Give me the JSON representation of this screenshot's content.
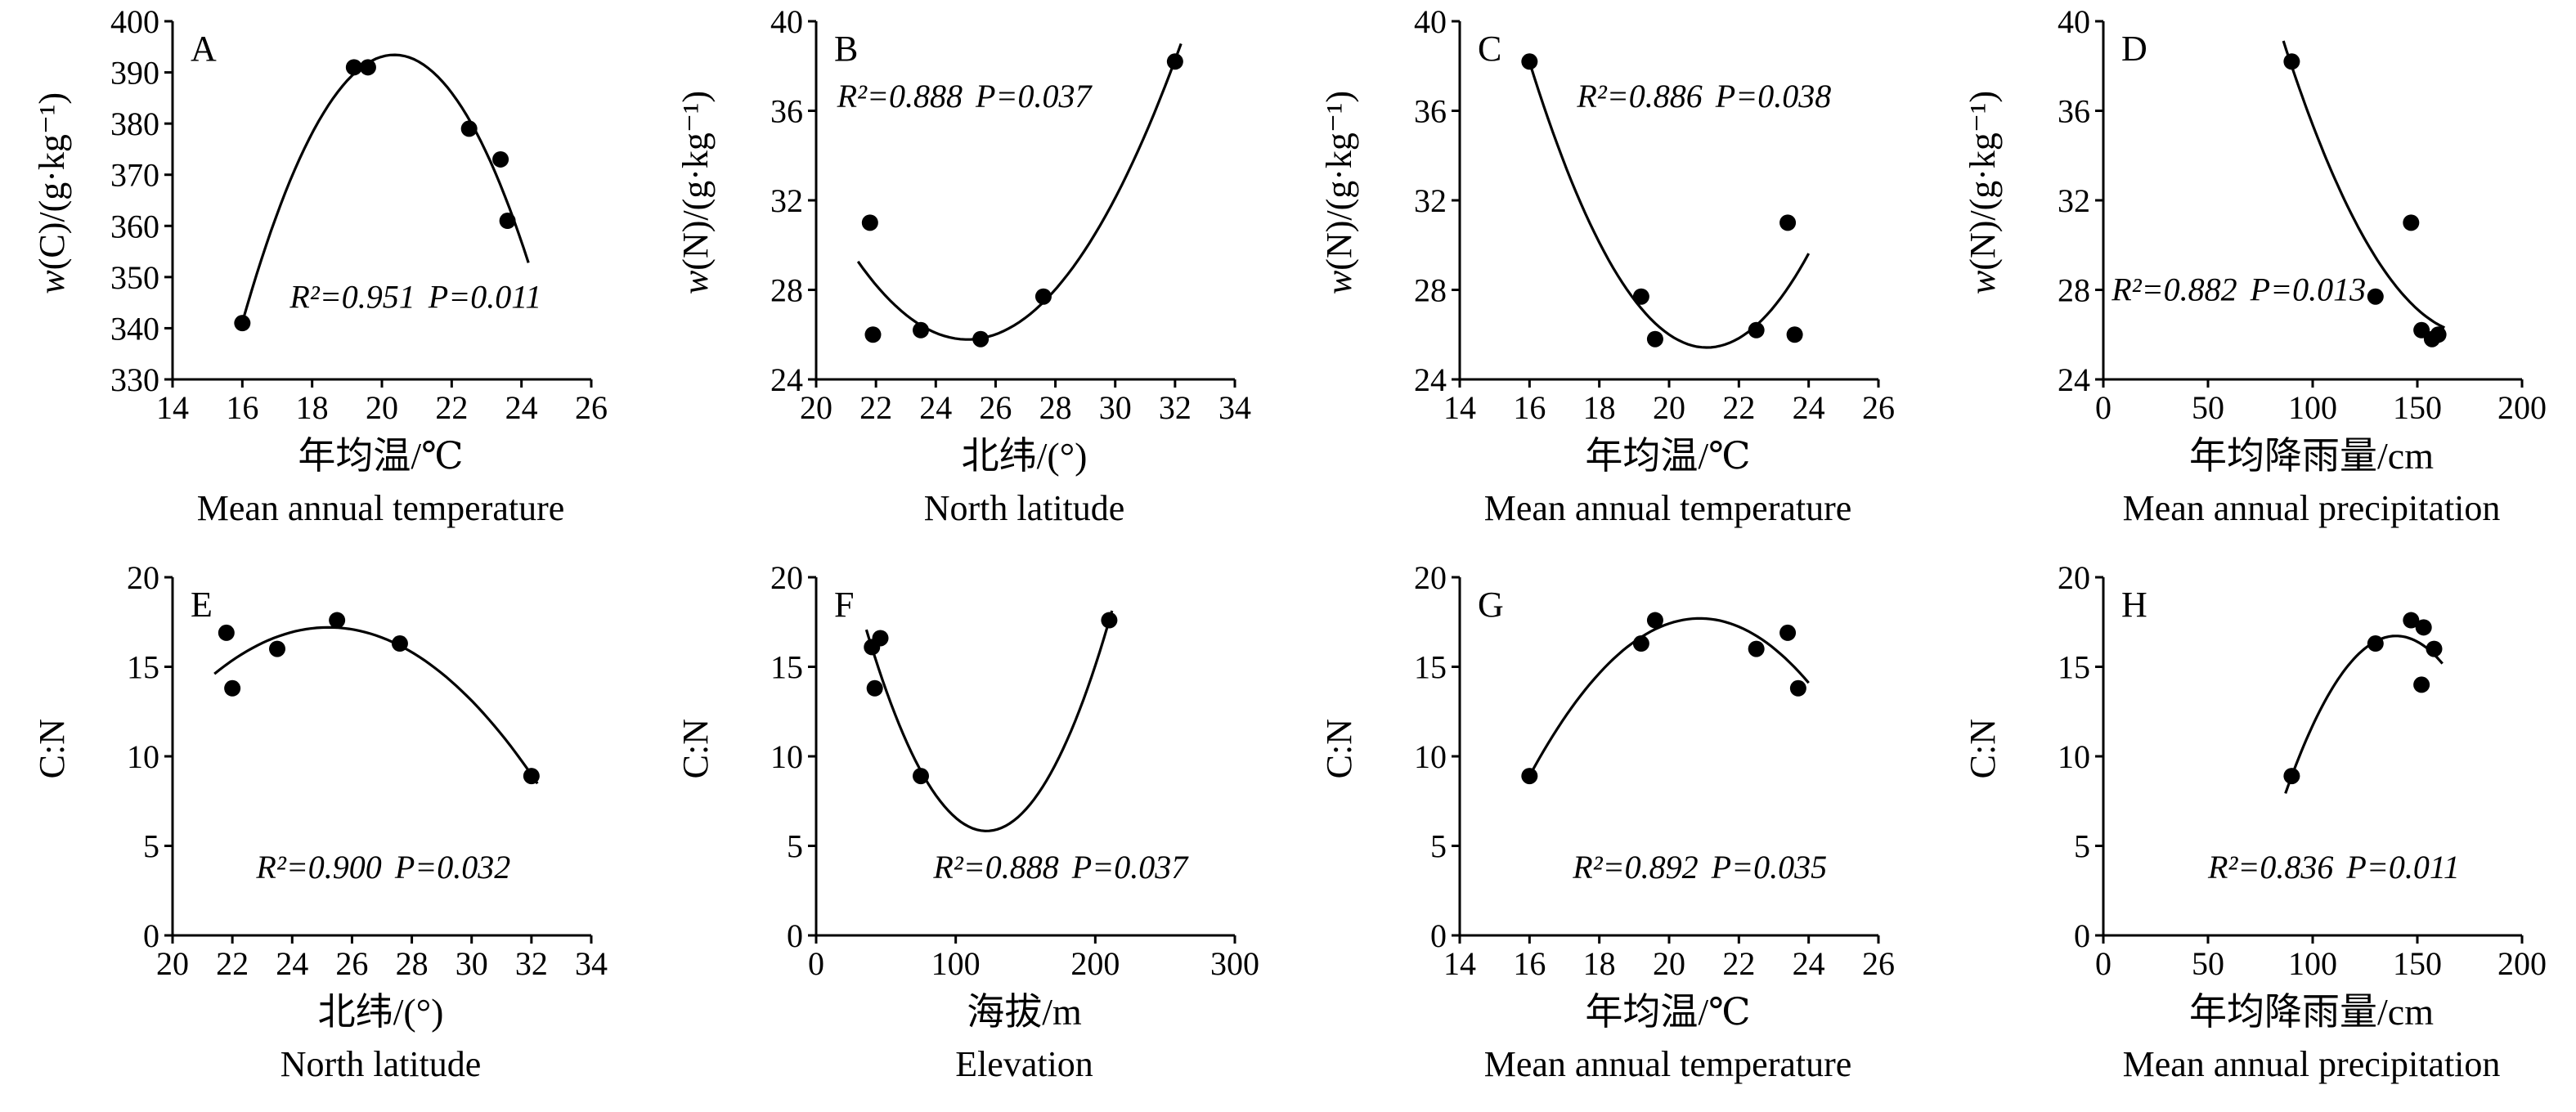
{
  "figure": {
    "background": "#ffffff",
    "ink_color": "#000000",
    "layout": "2 rows x 4 columns of scatter plots with quadratic fit curves"
  },
  "chart_data": [
    {
      "panel_label": "A",
      "type": "scatter",
      "ylabel_italic": "w",
      "ylabel_rest": "(C)/(g·kg⁻¹)",
      "xlabel_cn": "年均温/℃",
      "xlabel_en": "Mean annual temperature",
      "r2_text": "R²=0.951",
      "p_text": "P=0.011",
      "annotation_pos": {
        "x": 0.28,
        "y": 0.8
      },
      "xlim": [
        14,
        26
      ],
      "ylim": [
        330,
        400
      ],
      "xticks": [
        14,
        16,
        18,
        20,
        22,
        24,
        26
      ],
      "yticks": [
        330,
        340,
        350,
        360,
        370,
        380,
        390,
        400
      ],
      "fit": "quadratic",
      "fit_range": [
        16,
        24.2
      ],
      "points": [
        [
          16,
          341
        ],
        [
          19.2,
          391
        ],
        [
          19.6,
          391
        ],
        [
          22.5,
          379
        ],
        [
          23.4,
          373
        ],
        [
          23.6,
          361
        ]
      ]
    },
    {
      "panel_label": "B",
      "type": "scatter",
      "ylabel_italic": "w",
      "ylabel_rest": "(N)/(g·kg⁻¹)",
      "xlabel_cn": "北纬/(°)",
      "xlabel_en": "North latitude",
      "r2_text": "R²=0.888",
      "p_text": "P=0.037",
      "annotation_pos": {
        "x": 0.05,
        "y": 0.24
      },
      "xlim": [
        20,
        34
      ],
      "ylim": [
        24,
        40
      ],
      "xticks": [
        20,
        22,
        24,
        26,
        28,
        30,
        32,
        34
      ],
      "yticks": [
        24,
        28,
        32,
        36,
        40
      ],
      "fit": "quadratic",
      "fit_range": [
        21.4,
        32.2
      ],
      "points": [
        [
          21.8,
          31
        ],
        [
          21.9,
          26
        ],
        [
          23.5,
          26.2
        ],
        [
          25.5,
          25.8
        ],
        [
          27.6,
          27.7
        ],
        [
          32,
          38.2
        ]
      ]
    },
    {
      "panel_label": "C",
      "type": "scatter",
      "ylabel_italic": "w",
      "ylabel_rest": "(N)/(g·kg⁻¹)",
      "xlabel_cn": "年均温/℃",
      "xlabel_en": "Mean annual temperature",
      "r2_text": "R²=0.886",
      "p_text": "P=0.038",
      "annotation_pos": {
        "x": 0.28,
        "y": 0.24
      },
      "xlim": [
        14,
        26
      ],
      "ylim": [
        24,
        40
      ],
      "xticks": [
        14,
        16,
        18,
        20,
        22,
        24,
        26
      ],
      "yticks": [
        24,
        28,
        32,
        36,
        40
      ],
      "fit": "quadratic",
      "fit_range": [
        16,
        24.0
      ],
      "points": [
        [
          16,
          38.2
        ],
        [
          19.2,
          27.7
        ],
        [
          19.6,
          25.8
        ],
        [
          22.5,
          26.2
        ],
        [
          23.4,
          31
        ],
        [
          23.6,
          26
        ]
      ]
    },
    {
      "panel_label": "D",
      "type": "scatter",
      "ylabel_italic": "w",
      "ylabel_rest": "(N)/(g·kg⁻¹)",
      "xlabel_cn": "年均降雨量/cm",
      "xlabel_en": "Mean annual precipitation",
      "r2_text": "R²=0.882",
      "p_text": "P=0.013",
      "annotation_pos": {
        "x": 0.02,
        "y": 0.78
      },
      "xlim": [
        0,
        200
      ],
      "ylim": [
        24,
        40
      ],
      "xticks": [
        0,
        50,
        100,
        150,
        200
      ],
      "yticks": [
        24,
        28,
        32,
        36,
        40
      ],
      "fit": "quadratic",
      "fit_range": [
        86,
        163
      ],
      "points": [
        [
          90,
          38.2
        ],
        [
          130,
          27.7
        ],
        [
          147,
          31
        ],
        [
          152,
          26.2
        ],
        [
          157,
          25.8
        ],
        [
          160,
          26
        ]
      ]
    },
    {
      "panel_label": "E",
      "type": "scatter",
      "ylabel_italic": "",
      "ylabel_rest": "C:N",
      "xlabel_cn": "北纬/(°)",
      "xlabel_en": "North latitude",
      "r2_text": "R²=0.900",
      "p_text": "P=0.032",
      "annotation_pos": {
        "x": 0.2,
        "y": 0.84
      },
      "xlim": [
        20,
        34
      ],
      "ylim": [
        0,
        20
      ],
      "xticks": [
        20,
        22,
        24,
        26,
        28,
        30,
        32,
        34
      ],
      "yticks": [
        0,
        5,
        10,
        15,
        20
      ],
      "fit": "quadratic",
      "fit_range": [
        21.4,
        32.2
      ],
      "points": [
        [
          21.8,
          16.9
        ],
        [
          22,
          13.8
        ],
        [
          23.5,
          16
        ],
        [
          25.5,
          17.6
        ],
        [
          27.6,
          16.3
        ],
        [
          32,
          8.9
        ]
      ]
    },
    {
      "panel_label": "F",
      "type": "scatter",
      "ylabel_italic": "",
      "ylabel_rest": "C:N",
      "xlabel_cn": "海拔/m",
      "xlabel_en": "Elevation",
      "r2_text": "R²=0.888",
      "p_text": "P=0.037",
      "annotation_pos": {
        "x": 0.28,
        "y": 0.84
      },
      "xlim": [
        0,
        300
      ],
      "ylim": [
        0,
        20
      ],
      "xticks": [
        0,
        100,
        200,
        300
      ],
      "yticks": [
        0,
        5,
        10,
        15,
        20
      ],
      "fit": "quadratic",
      "fit_range": [
        36,
        212
      ],
      "points": [
        [
          40,
          16.1
        ],
        [
          46,
          16.6
        ],
        [
          42,
          13.8
        ],
        [
          75,
          8.9
        ],
        [
          210,
          17.6
        ]
      ]
    },
    {
      "panel_label": "G",
      "type": "scatter",
      "ylabel_italic": "",
      "ylabel_rest": "C:N",
      "xlabel_cn": "年均温/℃",
      "xlabel_en": "Mean annual temperature",
      "r2_text": "R²=0.892",
      "p_text": "P=0.035",
      "annotation_pos": {
        "x": 0.27,
        "y": 0.84
      },
      "xlim": [
        14,
        26
      ],
      "ylim": [
        0,
        20
      ],
      "xticks": [
        14,
        16,
        18,
        20,
        22,
        24,
        26
      ],
      "yticks": [
        0,
        5,
        10,
        15,
        20
      ],
      "fit": "quadratic",
      "fit_range": [
        16,
        24.0
      ],
      "points": [
        [
          16,
          8.9
        ],
        [
          19.2,
          16.3
        ],
        [
          19.6,
          17.6
        ],
        [
          22.5,
          16
        ],
        [
          23.4,
          16.9
        ],
        [
          23.7,
          13.8
        ]
      ]
    },
    {
      "panel_label": "H",
      "type": "scatter",
      "ylabel_italic": "",
      "ylabel_rest": "C:N",
      "xlabel_cn": "年均降雨量/cm",
      "xlabel_en": "Mean annual precipitation",
      "r2_text": "R²=0.836",
      "p_text": "P=0.011",
      "annotation_pos": {
        "x": 0.25,
        "y": 0.84
      },
      "xlim": [
        0,
        200
      ],
      "ylim": [
        0,
        20
      ],
      "xticks": [
        0,
        50,
        100,
        150,
        200
      ],
      "yticks": [
        0,
        5,
        10,
        15,
        20
      ],
      "fit": "quadratic",
      "fit_range": [
        87,
        162
      ],
      "points": [
        [
          90,
          8.9
        ],
        [
          130,
          16.3
        ],
        [
          147,
          17.6
        ],
        [
          152,
          14
        ],
        [
          153,
          17.2
        ],
        [
          158,
          16
        ]
      ]
    }
  ]
}
